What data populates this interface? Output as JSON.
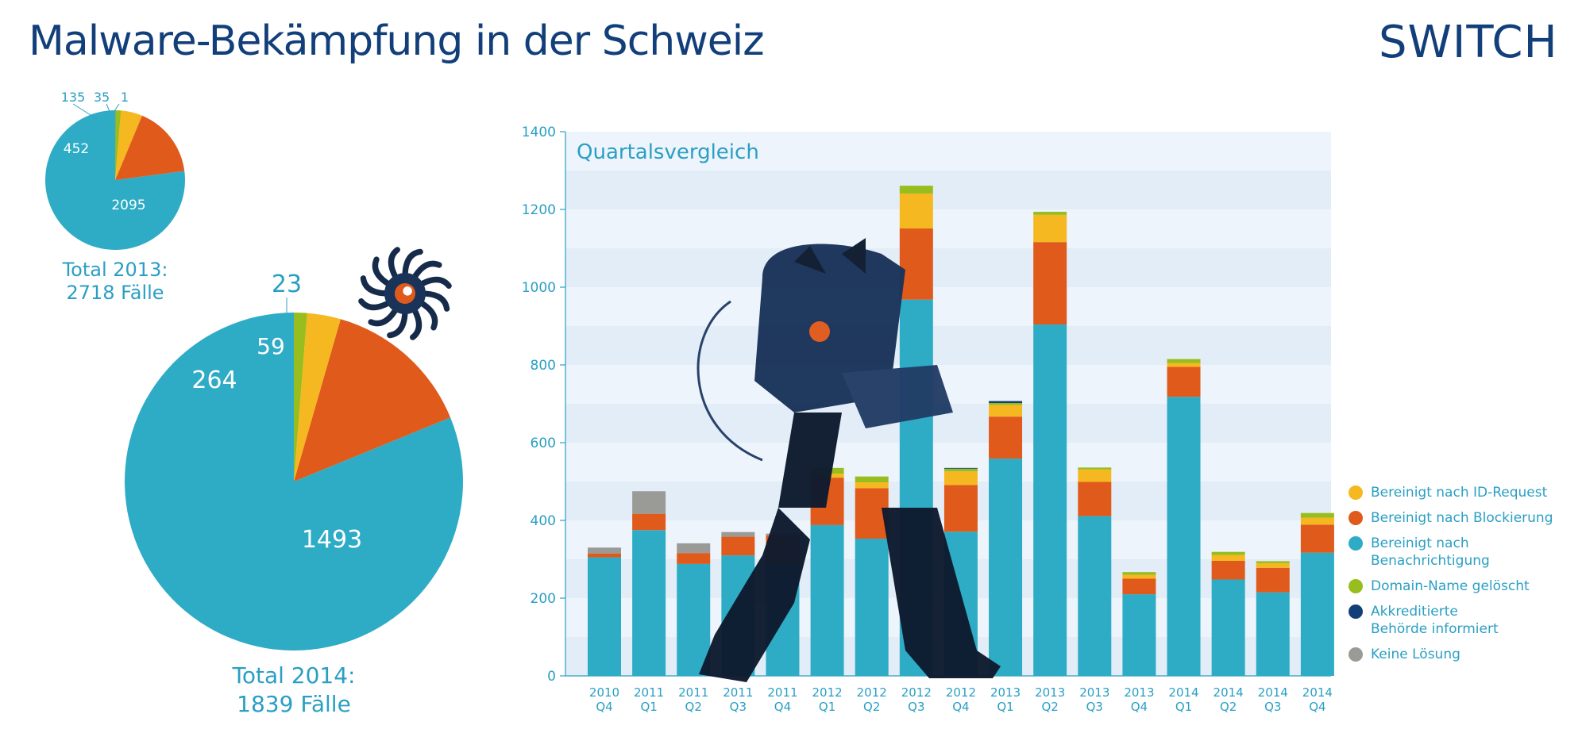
{
  "header": {
    "title": "Malware-Bekämpfung in der Schweiz",
    "logo": "SWITCH"
  },
  "colors": {
    "id_request": "#f5b820",
    "blockierung": "#e05a1c",
    "benachrichtigung": "#2eacc6",
    "domain": "#97bd1f",
    "behoerde": "#123f7a",
    "keine": "#9a9a96"
  },
  "pie2013": {
    "total_line1": "Total 2013:",
    "total_line2": "2718 Fälle",
    "slices": [
      {
        "label": "2095",
        "value": 2095,
        "color_key": "benachrichtigung"
      },
      {
        "label": "452",
        "value": 452,
        "color_key": "blockierung"
      },
      {
        "label": "135",
        "value": 135,
        "color_key": "id_request"
      },
      {
        "label": "35",
        "value": 35,
        "color_key": "domain"
      },
      {
        "label": "1",
        "value": 1,
        "color_key": "behoerde"
      }
    ]
  },
  "pie2014": {
    "total_line1": "Total 2014:",
    "total_line2": "1839 Fälle",
    "slices": [
      {
        "label": "1493",
        "value": 1493,
        "color_key": "benachrichtigung"
      },
      {
        "label": "264",
        "value": 264,
        "color_key": "blockierung"
      },
      {
        "label": "59",
        "value": 59,
        "color_key": "id_request"
      },
      {
        "label": "23",
        "value": 23,
        "color_key": "domain"
      }
    ]
  },
  "chart_data": {
    "type": "bar",
    "title": "Quartalsvergleich",
    "ylim": [
      0,
      1400
    ],
    "yticks": [
      "0",
      "200",
      "400",
      "600",
      "800",
      "1000",
      "1200",
      "1400"
    ],
    "categories": [
      [
        "2010",
        "Q4"
      ],
      [
        "2011",
        "Q1"
      ],
      [
        "2011",
        "Q2"
      ],
      [
        "2011",
        "Q3"
      ],
      [
        "2011",
        "Q4"
      ],
      [
        "2012",
        "Q1"
      ],
      [
        "2012",
        "Q2"
      ],
      [
        "2012",
        "Q3"
      ],
      [
        "2012",
        "Q4"
      ],
      [
        "2013",
        "Q1"
      ],
      [
        "2013",
        "Q2"
      ],
      [
        "2013",
        "Q3"
      ],
      [
        "2013",
        "Q4"
      ],
      [
        "2014",
        "Q1"
      ],
      [
        "2014",
        "Q2"
      ],
      [
        "2014",
        "Q3"
      ],
      [
        "2014",
        "Q4"
      ]
    ],
    "series": [
      {
        "name": "Bereinigt nach Benachrichtigung",
        "color_key": "benachrichtigung",
        "values": [
          305,
          375,
          288,
          310,
          288,
          388,
          353,
          968,
          371,
          559,
          904,
          411,
          210,
          718,
          248,
          215,
          317
        ]
      },
      {
        "name": "Bereinigt nach Blockierung",
        "color_key": "blockierung",
        "values": [
          10,
          42,
          28,
          48,
          73,
          122,
          130,
          183,
          120,
          108,
          212,
          88,
          40,
          77,
          48,
          63,
          72
        ]
      },
      {
        "name": "Bereinigt nach ID-Request",
        "color_key": "id_request",
        "values": [
          0,
          0,
          0,
          0,
          0,
          10,
          15,
          90,
          35,
          30,
          70,
          32,
          10,
          10,
          15,
          12,
          18
        ]
      },
      {
        "name": "Domain-Name gelöscht",
        "color_key": "domain",
        "values": [
          0,
          0,
          0,
          0,
          0,
          15,
          15,
          20,
          7,
          5,
          8,
          5,
          7,
          10,
          8,
          5,
          12
        ]
      },
      {
        "name": "Akkreditierte Behörde informiert",
        "color_key": "behoerde",
        "values": [
          0,
          0,
          0,
          0,
          0,
          0,
          0,
          0,
          2,
          5,
          0,
          0,
          0,
          0,
          0,
          0,
          0
        ]
      },
      {
        "name": "Keine Lösung",
        "color_key": "keine",
        "values": [
          15,
          58,
          25,
          12,
          5,
          0,
          0,
          0,
          0,
          0,
          0,
          0,
          0,
          0,
          0,
          0,
          0
        ]
      }
    ]
  },
  "legend": [
    {
      "lines": [
        "Bereinigt nach ID-Request"
      ],
      "color_key": "id_request"
    },
    {
      "lines": [
        "Bereinigt nach Blockierung"
      ],
      "color_key": "blockierung"
    },
    {
      "lines": [
        "Bereinigt nach",
        "Benachrichtigung"
      ],
      "color_key": "benachrichtigung"
    },
    {
      "lines": [
        "Domain-Name gelöscht"
      ],
      "color_key": "domain"
    },
    {
      "lines": [
        "Akkreditierte",
        "Behörde informiert"
      ],
      "color_key": "behoerde"
    },
    {
      "lines": [
        "Keine Lösung"
      ],
      "color_key": "keine"
    }
  ]
}
